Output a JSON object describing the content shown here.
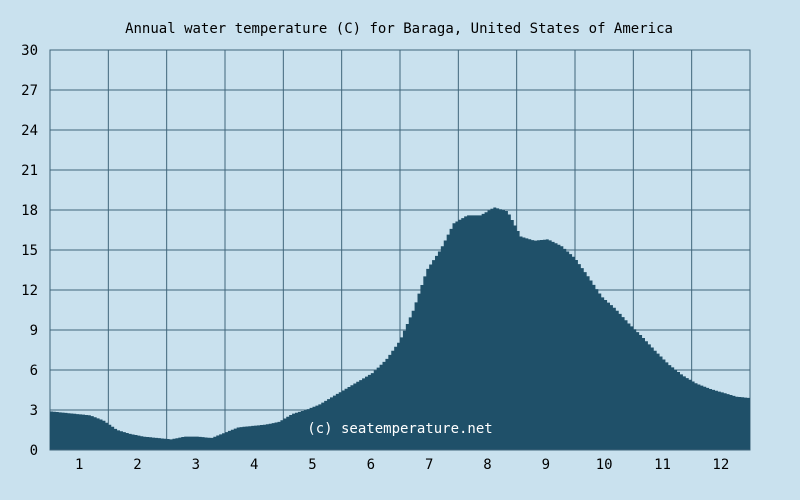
{
  "chart_data": {
    "type": "area",
    "title": "Annual water temperature (C) for Baraga, United States of America",
    "xlabel": "",
    "ylabel": "",
    "ylim": [
      0,
      30
    ],
    "y_ticks": [
      "0",
      "3",
      "6",
      "9",
      "12",
      "15",
      "18",
      "21",
      "24",
      "27",
      "30"
    ],
    "x_ticks": [
      "1",
      "2",
      "3",
      "4",
      "5",
      "6",
      "7",
      "8",
      "9",
      "10",
      "11",
      "12"
    ],
    "grid": true,
    "watermark": "(c) seatemperature.net",
    "colors": {
      "background": "#c9e1ee",
      "fill": "#1f5069",
      "grid": "#40657a"
    },
    "series": [
      {
        "x": [
          "Jan 1",
          "Jan 8",
          "Jan 15",
          "Jan 22",
          "Jan 29",
          "Feb 5",
          "Feb 12",
          "Feb 19",
          "Feb 26",
          "Mar 5",
          "Mar 12",
          "Mar 19",
          "Mar 26",
          "Apr 2",
          "Apr 9",
          "Apr 16",
          "Apr 23",
          "Apr 30",
          "May 7",
          "May 14",
          "May 21",
          "May 28",
          "Jun 4",
          "Jun 11",
          "Jun 18",
          "Jun 25",
          "Jul 2",
          "Jul 9",
          "Jul 16",
          "Jul 23",
          "Jul 30",
          "Aug 6",
          "Aug 13",
          "Aug 20",
          "Aug 27",
          "Sep 3",
          "Sep 10",
          "Sep 17",
          "Sep 24",
          "Oct 1",
          "Oct 8",
          "Oct 15",
          "Oct 22",
          "Oct 29",
          "Nov 5",
          "Nov 12",
          "Nov 19",
          "Nov 26",
          "Dec 3",
          "Dec 10",
          "Dec 17",
          "Dec 24",
          "Dec 31"
        ],
        "values": [
          2.9,
          2.8,
          2.7,
          2.6,
          2.2,
          1.5,
          1.2,
          1.0,
          0.9,
          0.8,
          1.0,
          1.0,
          0.9,
          1.3,
          1.7,
          1.8,
          1.9,
          2.1,
          2.7,
          3.0,
          3.4,
          4.0,
          4.6,
          5.2,
          5.8,
          6.8,
          8.2,
          10.5,
          13.5,
          15.0,
          17.0,
          17.6,
          17.6,
          18.2,
          17.9,
          16.0,
          15.7,
          15.8,
          15.3,
          14.4,
          13.0,
          11.5,
          10.6,
          9.5,
          8.5,
          7.4,
          6.4,
          5.6,
          5.0,
          4.6,
          4.3,
          4.0,
          3.9
        ]
      }
    ]
  }
}
